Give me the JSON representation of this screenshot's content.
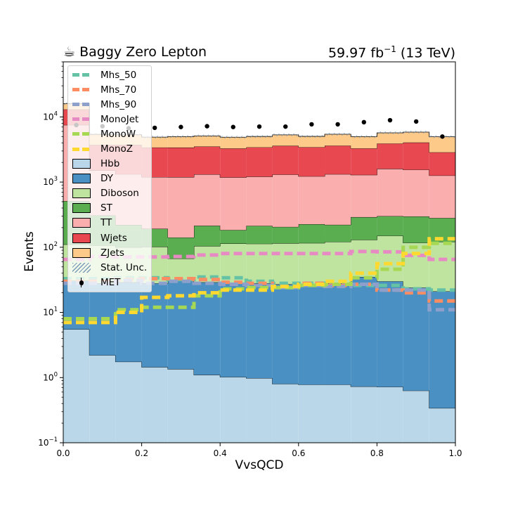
{
  "header": {
    "logo_icon": "coffee-cup-icon",
    "logo_glyph": "☕",
    "analysis_name": "Baggy Zero Lepton",
    "lumi_value": "59.97 fb",
    "lumi_exp": "−1",
    "energy": "(13 TeV)"
  },
  "chart_data": {
    "type": "stacked-histogram",
    "xlabel": "VvsQCD",
    "ylabel": "Events",
    "xlim": [
      0,
      1
    ],
    "ylim": [
      0.1,
      70000
    ],
    "yscale": "log",
    "x_ticks": [
      "0.0",
      "0.2",
      "0.4",
      "0.6",
      "0.8",
      "1.0"
    ],
    "y_ticks": [
      {
        "value": 0.1,
        "base": "10",
        "exp": "−1"
      },
      {
        "value": 1,
        "base": "10",
        "exp": "0"
      },
      {
        "value": 10,
        "base": "10",
        "exp": "1"
      },
      {
        "value": 100,
        "base": "10",
        "exp": "2"
      },
      {
        "value": 1000,
        "base": "10",
        "exp": "3"
      },
      {
        "value": 10000,
        "base": "10",
        "exp": "4"
      }
    ],
    "bin_edges": [
      0,
      0.0667,
      0.1333,
      0.2,
      0.2667,
      0.3333,
      0.4,
      0.4667,
      0.5333,
      0.6,
      0.6667,
      0.7333,
      0.8,
      0.8667,
      0.9333,
      1.0
    ],
    "legend_position": "upper-left",
    "stack": [
      {
        "name": "Hbb",
        "color": "#b9d7e8",
        "values": [
          5.5,
          2.2,
          1.75,
          1.45,
          1.35,
          1.1,
          1.02,
          0.98,
          0.8,
          0.78,
          0.78,
          0.73,
          0.72,
          0.63,
          0.34
        ]
      },
      {
        "name": "DY",
        "color": "#4a90c2",
        "values": [
          25,
          25.8,
          27.2,
          26.5,
          29.6,
          27.9,
          26.9,
          27.0,
          26.2,
          24.2,
          27.2,
          34.3,
          29.3,
          23.4,
          20.7
        ]
      },
      {
        "name": "Diboson",
        "color": "#bfe4a0",
        "values": [
          80,
          79,
          71,
          74,
          36,
          75,
          86,
          85,
          88,
          91,
          93,
          95,
          120,
          93,
          100
        ]
      },
      {
        "name": "ST",
        "color": "#5aae50",
        "values": [
          400,
          200,
          120,
          90,
          74,
          110,
          70,
          100,
          90,
          110,
          100,
          160,
          150,
          180,
          160
        ]
      },
      {
        "name": "TT",
        "color": "#fbaeae",
        "values": [
          7000,
          1200,
          1100,
          1000,
          1050,
          1100,
          1000,
          1000,
          1100,
          1000,
          1100,
          1000,
          1300,
          1250,
          980
        ]
      },
      {
        "name": "Wjets",
        "color": "#e84850",
        "values": [
          5500,
          2200,
          2400,
          2200,
          2200,
          2200,
          2100,
          2200,
          2300,
          2200,
          2300,
          2000,
          2300,
          2500,
          1600
        ]
      },
      {
        "name": "ZJets",
        "color": "#fdca8a",
        "values": [
          3000,
          1700,
          1600,
          1500,
          1600,
          1600,
          1600,
          1600,
          1700,
          1600,
          1800,
          1700,
          1800,
          1800,
          2100
        ]
      }
    ],
    "signals": [
      {
        "name": "Mhs_50",
        "color": "#66c2a5",
        "values": [
          33,
          33,
          34,
          34,
          32,
          35,
          34,
          30,
          28,
          28,
          27,
          26,
          26,
          23,
          22
        ]
      },
      {
        "name": "Mhs_70",
        "color": "#fc8d62",
        "values": [
          30,
          30,
          32,
          33,
          33,
          32,
          29,
          28,
          25,
          28,
          26,
          27,
          22,
          20,
          15
        ]
      },
      {
        "name": "Mhs_90",
        "color": "#8da0cb",
        "values": [
          28,
          28,
          31,
          28,
          30,
          28,
          27,
          26,
          24,
          26,
          25,
          27,
          22,
          22,
          11
        ]
      },
      {
        "name": "MonoJet",
        "color": "#e78ac3",
        "values": [
          65,
          72,
          71,
          71,
          72,
          76,
          80,
          80,
          80,
          80,
          80,
          86,
          85,
          75,
          65
        ]
      },
      {
        "name": "MonoW",
        "color": "#a6d854",
        "values": [
          8,
          8,
          11,
          12,
          12,
          18,
          23,
          24,
          24,
          26,
          27,
          34,
          46,
          100,
          115
        ]
      },
      {
        "name": "MonoZ",
        "color": "#ffd92f",
        "values": [
          7,
          7,
          10,
          17,
          18,
          20,
          22,
          22,
          25,
          27,
          30,
          40,
          56,
          80,
          135
        ]
      }
    ],
    "uncertainty": {
      "name": "Stat. Unc.",
      "color": "#7a9ab8"
    },
    "data": {
      "name": "MET",
      "color": "#000000",
      "x": [
        0.0333,
        0.1,
        0.1667,
        0.2333,
        0.3,
        0.3667,
        0.4333,
        0.5,
        0.5667,
        0.6333,
        0.7,
        0.7667,
        0.8333,
        0.9,
        0.9667
      ],
      "y": [
        7500,
        7200,
        6700,
        6800,
        7000,
        7200,
        7000,
        7100,
        7100,
        7700,
        7700,
        8300,
        8900,
        8500,
        5000
      ]
    }
  }
}
